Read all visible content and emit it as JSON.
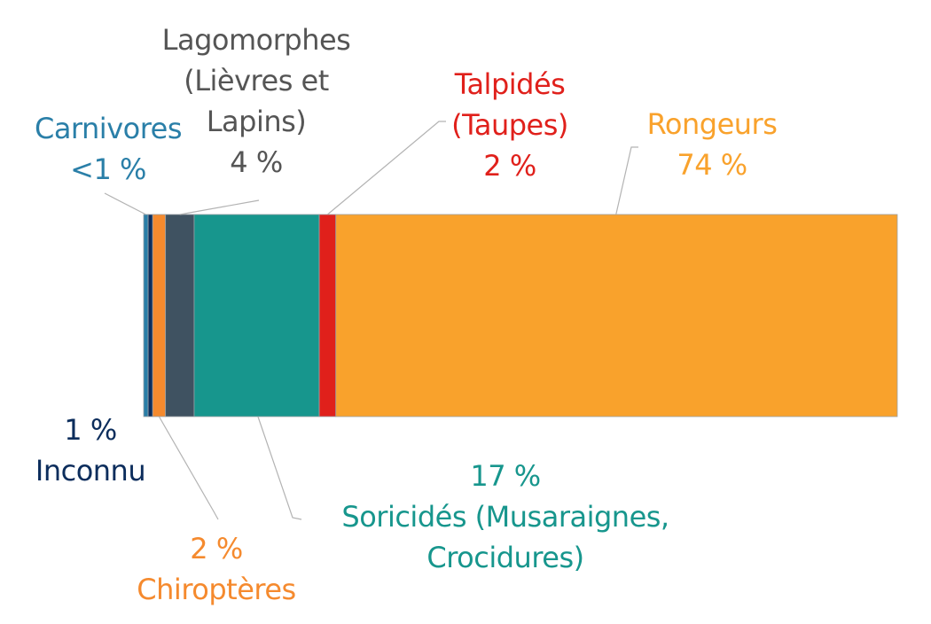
{
  "chart_data": {
    "type": "bar",
    "orientation": "horizontal",
    "stacked": true,
    "categories": [
      "Carnivores",
      "Inconnu",
      "Chiroptères",
      "Lagomorphes",
      "Soricidés",
      "Talpidés",
      "Rongeurs"
    ],
    "values": [
      0.6,
      0.6,
      1.7,
      3.8,
      16.6,
      2.2,
      74.5
    ],
    "series": [
      {
        "name": "Carnivores",
        "color": "#2A7FA8",
        "label_lines": [
          "Carnivores",
          "<1 %"
        ]
      },
      {
        "name": "Inconnu",
        "color": "#0C2D5C",
        "label_lines": [
          "1 %",
          "Inconnu"
        ]
      },
      {
        "name": "Chiroptères",
        "color": "#F58A2E",
        "label_lines": [
          "2 %",
          "Chiroptères"
        ]
      },
      {
        "name": "Lagomorphes",
        "color": "#3F5261",
        "label_lines": [
          "Lagomorphes",
          "(Lièvres et",
          "Lapins)",
          "4 %"
        ]
      },
      {
        "name": "Soricidés",
        "color": "#17968D",
        "label_lines": [
          "17 %",
          "Soricidés (Musaraignes,",
          "Crocidures)"
        ]
      },
      {
        "name": "Talpidés",
        "color": "#E0201B",
        "label_lines": [
          "Talpidés",
          "(Taupes)",
          "2 %"
        ]
      },
      {
        "name": "Rongeurs",
        "color": "#F9A22C",
        "label_lines": [
          "Rongeurs",
          "74 %"
        ]
      }
    ],
    "label_colors": {
      "Carnivores": "#2A7FA8",
      "Inconnu": "#0C2D5C",
      "Chiroptères": "#F58A2E",
      "Lagomorphes": "#555555",
      "Soricidés": "#17968D",
      "Talpidés": "#E0201B",
      "Rongeurs": "#F9A22C"
    },
    "xlim": [
      0,
      100
    ],
    "grid": false,
    "legend": "none"
  }
}
